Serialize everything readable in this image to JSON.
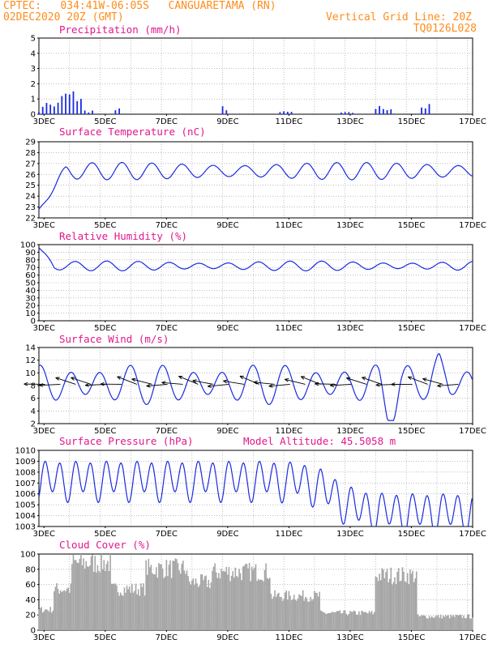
{
  "header": {
    "left_line1": "CPTEC:   034:41W-06:05S   CANGUARETAMA (RN)",
    "left_line2": "02DEC2020 20Z (GMT)",
    "right_line1": "Vertical Grid Line: 20Z",
    "right_line2": "TQ0126L028"
  },
  "colors": {
    "header": "#ff8c1a",
    "title": "#e0188c",
    "line": "#1a2be0",
    "bar": "#1a2be0",
    "cloud": "#a6a6a6",
    "wind_arrow": "#000000"
  },
  "x_ticks": [
    "3DEC",
    "5DEC",
    "7DEC",
    "9DEC",
    "11DEC",
    "13DEC",
    "15DEC",
    "17DEC"
  ],
  "chart_data": [
    {
      "id": "precip",
      "type": "bar",
      "title": "Precipitation (mm/h)",
      "ylim": [
        0,
        5
      ],
      "yticks": [
        "0",
        "1",
        "2",
        "3",
        "4",
        "5"
      ],
      "x_start": "02DEC2020 20Z",
      "x_end": "17DEC2020 00Z",
      "x_step_hours": 3,
      "bursts": [
        {
          "day": 2.7,
          "width": 0.5,
          "peak": 0.4
        },
        {
          "day": 3.3,
          "width": 0.4,
          "peak": 0.9
        },
        {
          "day": 3.9,
          "width": 0.35,
          "peak": 1.7
        },
        {
          "day": 4.4,
          "width": 0.2,
          "peak": 0.3
        },
        {
          "day": 5.4,
          "width": 0.15,
          "peak": 0.4
        },
        {
          "day": 8.9,
          "width": 0.15,
          "peak": 0.6
        },
        {
          "day": 10.9,
          "width": 0.3,
          "peak": 0.2
        },
        {
          "day": 12.9,
          "width": 0.3,
          "peak": 0.15
        },
        {
          "day": 14.1,
          "width": 0.3,
          "peak": 0.6
        },
        {
          "day": 15.5,
          "width": 0.2,
          "peak": 0.7
        }
      ]
    },
    {
      "id": "temp",
      "type": "line",
      "title": "Surface Temperature (nC)",
      "ylim": [
        22,
        29
      ],
      "yticks": [
        "22",
        "23",
        "24",
        "25",
        "26",
        "27",
        "28",
        "29"
      ],
      "start": 22.8,
      "ramp_to": 25.8,
      "ramp_days": 0.9,
      "mean": 26.3,
      "amp": 0.65,
      "period_days": 1.0
    },
    {
      "id": "rh",
      "type": "line",
      "title": "Relative Humidity (%)",
      "ylim": [
        0,
        100
      ],
      "yticks": [
        "0",
        "10",
        "20",
        "30",
        "40",
        "50",
        "60",
        "70",
        "80",
        "90",
        "100"
      ],
      "start": 96,
      "mean": 72,
      "amp": 5,
      "period_days": 1.0
    },
    {
      "id": "wind",
      "type": "line",
      "title": "Surface Wind (m/s)",
      "ylim": [
        2,
        14
      ],
      "yticks": [
        "2",
        "4",
        "6",
        "8",
        "10",
        "12",
        "14"
      ],
      "mean": 8.2,
      "amp": 2.4,
      "period_days": 1.0,
      "minimum": {
        "day": 14.3,
        "value": 3.0
      },
      "maximum": {
        "day": 15.9,
        "value": 12.5
      },
      "arrows_every_hours": 12
    },
    {
      "id": "pres",
      "type": "line",
      "title": "Surface Pressure (hPa)",
      "annotation": "Model Altitude: 45.5058 m",
      "ylim": [
        1003,
        1010
      ],
      "yticks": [
        "1003",
        "1004",
        "1005",
        "1006",
        "1007",
        "1008",
        "1009",
        "1010"
      ],
      "start_mean": 1007.3,
      "end_mean": 1004.3,
      "drop_day": 12.5,
      "amp": 1.6,
      "period_hours": 12
    },
    {
      "id": "cloud",
      "type": "area",
      "title": "Cloud Cover (%)",
      "ylim": [
        0,
        100
      ],
      "yticks": [
        "0",
        "20",
        "40",
        "60",
        "80",
        "100"
      ],
      "segments": [
        {
          "from": 2.8,
          "to": 3.3,
          "level": 30
        },
        {
          "from": 3.3,
          "to": 3.9,
          "level": 60
        },
        {
          "from": 3.9,
          "to": 5.2,
          "level": 98
        },
        {
          "from": 5.2,
          "to": 6.3,
          "level": 60
        },
        {
          "from": 6.3,
          "to": 7.7,
          "level": 90
        },
        {
          "from": 7.7,
          "to": 8.5,
          "level": 70
        },
        {
          "from": 8.5,
          "to": 10.4,
          "level": 85
        },
        {
          "from": 10.4,
          "to": 12.0,
          "level": 50
        },
        {
          "from": 12.0,
          "to": 13.8,
          "level": 25
        },
        {
          "from": 13.8,
          "to": 15.2,
          "level": 80
        },
        {
          "from": 15.2,
          "to": 17.0,
          "level": 20
        }
      ]
    }
  ]
}
